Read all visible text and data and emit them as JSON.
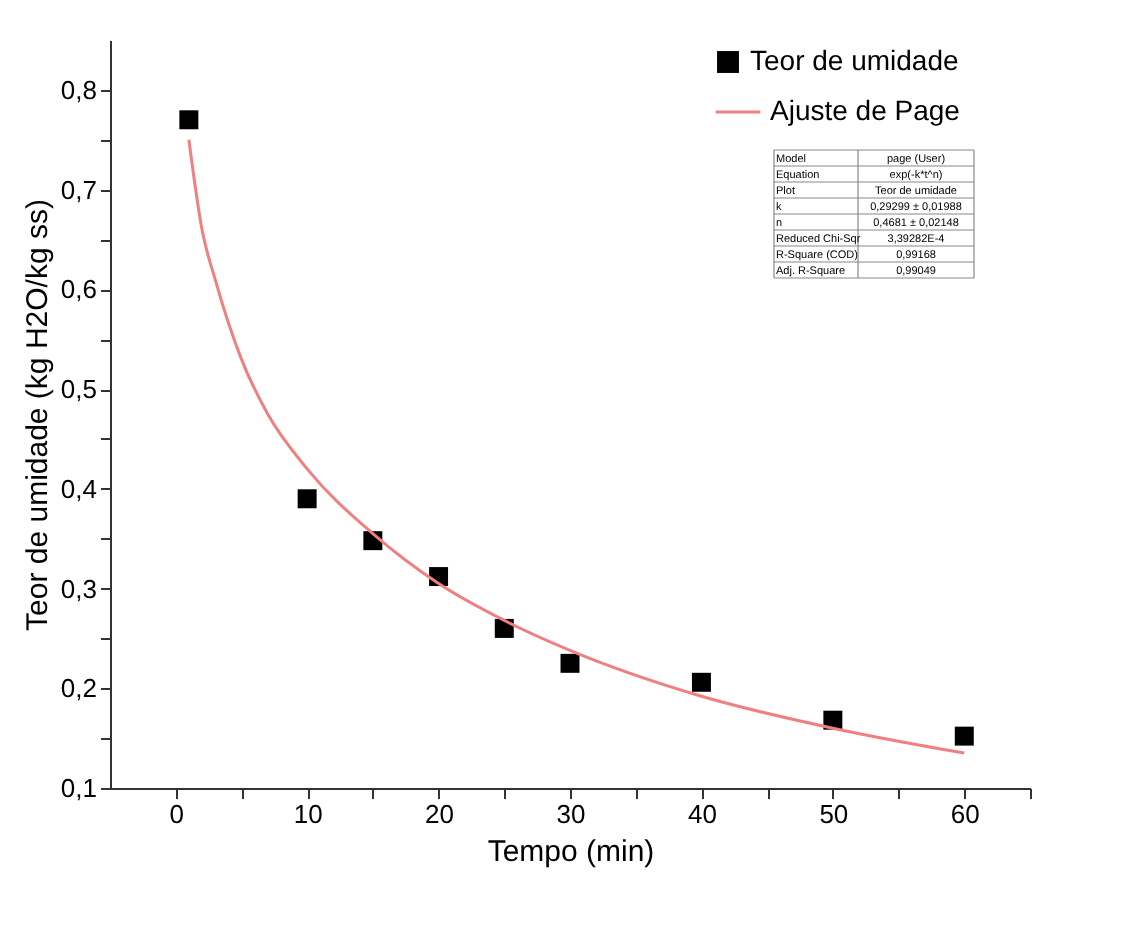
{
  "chart_data": {
    "type": "scatter",
    "xlabel": "Tempo (min)",
    "ylabel": "Teor de umidade (kg H2O/kg ss)",
    "xlim": [
      -5,
      65
    ],
    "ylim": [
      0.1,
      0.85
    ],
    "xticks": [
      0,
      {
        "value": 5,
        "label": null
      },
      10,
      {
        "value": 15,
        "label": null
      },
      20,
      {
        "value": 25,
        "label": null
      },
      30,
      {
        "value": 35,
        "label": null
      },
      40,
      {
        "value": 45,
        "label": null
      },
      50,
      {
        "value": 55,
        "label": null
      },
      60,
      {
        "value": 65,
        "label": null
      }
    ],
    "yticks": [
      {
        "value": 0.1,
        "label": "0,1"
      },
      {
        "value": 0.15,
        "label": null
      },
      {
        "value": 0.2,
        "label": "0,2"
      },
      {
        "value": 0.25,
        "label": null
      },
      {
        "value": 0.3,
        "label": "0,3"
      },
      {
        "value": 0.35,
        "label": null
      },
      {
        "value": 0.4,
        "label": "0,4"
      },
      {
        "value": 0.45,
        "label": null
      },
      {
        "value": 0.5,
        "label": "0,5"
      },
      {
        "value": 0.55,
        "label": null
      },
      {
        "value": 0.6,
        "label": "0,6"
      },
      {
        "value": 0.65,
        "label": null
      },
      {
        "value": 0.7,
        "label": "0,7"
      },
      {
        "value": 0.75,
        "label": null
      },
      {
        "value": 0.8,
        "label": "0,8"
      }
    ],
    "grid": false,
    "legend": "top right",
    "series": [
      {
        "name": "Teor de umidade",
        "type": "scatter",
        "marker": "square",
        "color": "#000000",
        "x": [
          1,
          10,
          15,
          20,
          25,
          30,
          40,
          50,
          60
        ],
        "values": [
          0.77,
          0.39,
          0.348,
          0.312,
          0.26,
          0.225,
          0.206,
          0.168,
          0.152
        ]
      },
      {
        "name": "Ajuste de Page",
        "type": "line",
        "line_style": "solid",
        "color": "#f08080",
        "x": [
          1,
          2,
          3,
          5,
          7,
          10,
          15,
          20,
          25,
          30,
          40,
          50,
          60
        ],
        "values": [
          0.75,
          0.66,
          0.61,
          0.53,
          0.475,
          0.42,
          0.355,
          0.305,
          0.268,
          0.238,
          0.192,
          0.16,
          0.135
        ]
      }
    ],
    "annotations": [
      "Model",
      "page (User)",
      "Equation",
      "exp(-k*t^n)",
      "Plot",
      "Teor de umidade",
      "k",
      "0,29299 ± 0,01988",
      "n",
      "0,4681 ± 0,02148",
      "Reduced Chi-Sqr",
      "3,39282E-4",
      "R-Square (COD)",
      "0,99168",
      "Adj. R-Square",
      "0,99049"
    ]
  }
}
